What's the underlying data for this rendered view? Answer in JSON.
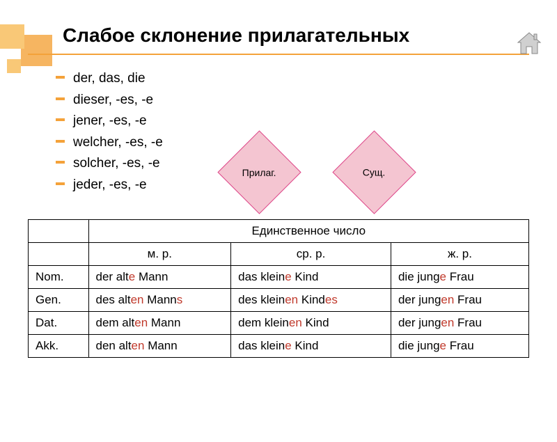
{
  "title": "Слабое склонение прилагательных",
  "bullets": [
    "der, das, die",
    "dieser, -es, -e",
    "jener, -es, -e",
    "welcher, -es, -e",
    "solcher, -es, -e",
    "jeder, -es, -e"
  ],
  "diamond1": "Прилаг.",
  "diamond2": "Сущ.",
  "table": {
    "header_span": "Единственное число",
    "cols": [
      "",
      "м. р.",
      "ср. р.",
      "ж. р."
    ],
    "rows": [
      {
        "case": "Nom.",
        "m": [
          "der alt",
          "e",
          " Mann"
        ],
        "n": [
          "das klein",
          "e",
          " Kind"
        ],
        "f": [
          "die jung",
          "e",
          " Frau"
        ]
      },
      {
        "case": "Gen.",
        "m": [
          "des alt",
          "en",
          " Mann",
          "s"
        ],
        "n": [
          "des klein",
          "en",
          " Kind",
          "es"
        ],
        "f": [
          "der jung",
          "en",
          " Frau"
        ]
      },
      {
        "case": "Dat.",
        "m": [
          "dem alt",
          "en",
          " Mann"
        ],
        "n": [
          "dem klein",
          "en",
          " Kind"
        ],
        "f": [
          "der jung",
          "en",
          " Frau"
        ]
      },
      {
        "case": "Akk.",
        "m": [
          "den alt",
          "en",
          " Mann"
        ],
        "n": [
          "das klein",
          "e",
          " Kind"
        ],
        "f": [
          "die jung",
          "e",
          " Frau"
        ]
      }
    ]
  }
}
